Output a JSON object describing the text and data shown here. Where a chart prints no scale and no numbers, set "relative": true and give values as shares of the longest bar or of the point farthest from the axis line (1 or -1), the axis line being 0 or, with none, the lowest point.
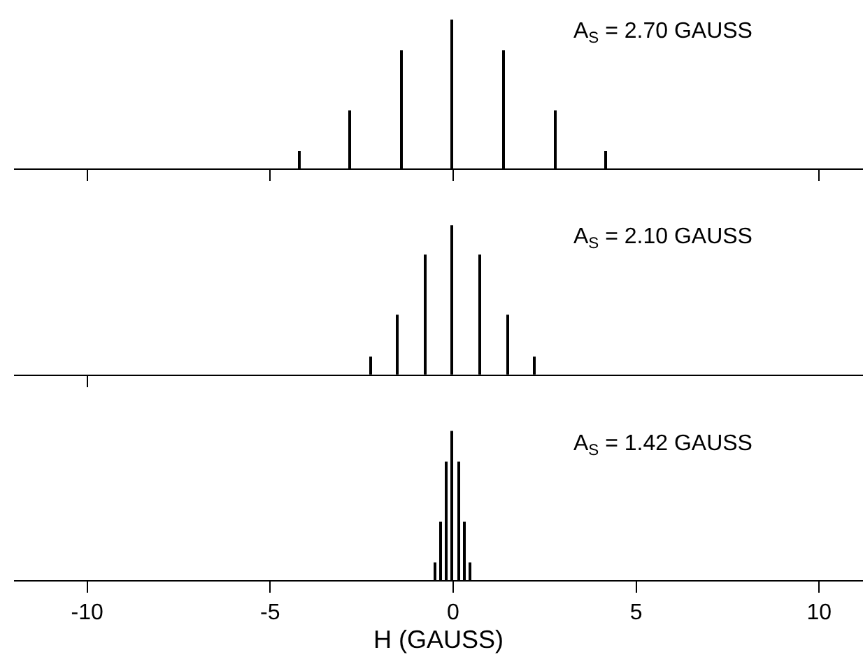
{
  "chart_data": [
    {
      "type": "bar",
      "relative": true,
      "x": [
        -4.2,
        -2.8,
        -1.4,
        0,
        1.4,
        2.8,
        4.2
      ],
      "values": [
        0.11,
        0.39,
        0.79,
        1,
        0.79,
        0.39,
        0.11
      ],
      "color": "#000000",
      "xlim": [
        -12,
        11.2
      ],
      "xticks": [
        {
          "value": -10,
          "label": null
        },
        {
          "value": -5,
          "label": null
        },
        {
          "value": 0,
          "label": null
        },
        {
          "value": 10,
          "label": null
        }
      ],
      "tick_labels": false,
      "annotations": [
        "A$_{S}$ = 2.70 GAUSS"
      ]
    },
    {
      "type": "bar",
      "relative": true,
      "x": [
        -2.25,
        -1.5,
        -0.75,
        0,
        0.75,
        1.5,
        2.25
      ],
      "values": [
        0.11,
        0.4,
        0.8,
        1,
        0.8,
        0.4,
        0.11
      ],
      "color": "#000000",
      "xlim": [
        -12,
        11.2
      ],
      "xticks": [
        {
          "value": -10,
          "label": null
        }
      ],
      "tick_labels": false,
      "annotations": [
        "A$_{S}$ = 2.10 GAUSS"
      ]
    },
    {
      "type": "bar",
      "relative": true,
      "x": [
        -0.48,
        -0.32,
        -0.16,
        0,
        0.16,
        0.32,
        0.48
      ],
      "values": [
        0.11,
        0.39,
        0.79,
        1,
        0.79,
        0.39,
        0.11
      ],
      "color": "#000000",
      "xlim": [
        -12,
        11.2
      ],
      "xticks": [
        -10,
        -5,
        0,
        5,
        10
      ],
      "tick_labels": "x",
      "xlabel": "H (GAUSS)",
      "annotations": [
        "A$_{S}$ = 1.42 GAUSS"
      ]
    }
  ]
}
